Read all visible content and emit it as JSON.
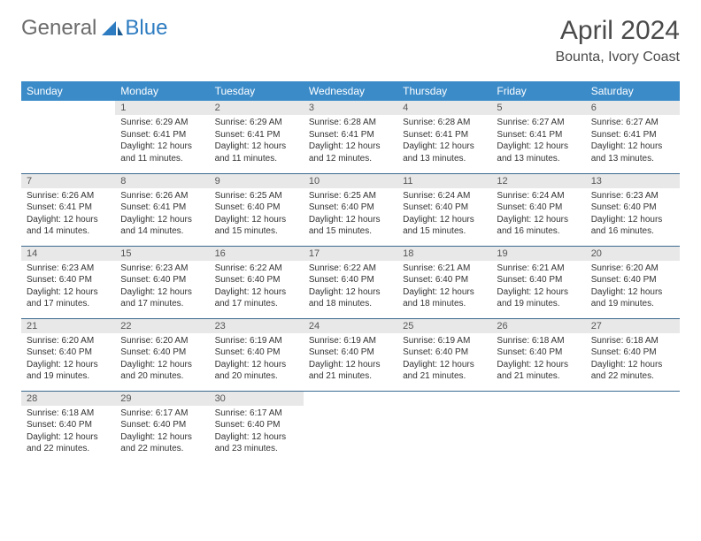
{
  "brand": {
    "part1": "General",
    "part2": "Blue"
  },
  "title": "April 2024",
  "location": "Bounta, Ivory Coast",
  "colors": {
    "header_bg": "#3b8bc9",
    "header_text": "#ffffff",
    "daybar_bg": "#e8e8e8",
    "row_border": "#3b6a8f",
    "brand_gray": "#6b6b6b",
    "brand_blue": "#2d7cc1"
  },
  "weekdays": [
    "Sunday",
    "Monday",
    "Tuesday",
    "Wednesday",
    "Thursday",
    "Friday",
    "Saturday"
  ],
  "weeks": [
    [
      null,
      {
        "n": "1",
        "sr": "6:29 AM",
        "ss": "6:41 PM",
        "dl": "12 hours and 11 minutes."
      },
      {
        "n": "2",
        "sr": "6:29 AM",
        "ss": "6:41 PM",
        "dl": "12 hours and 11 minutes."
      },
      {
        "n": "3",
        "sr": "6:28 AM",
        "ss": "6:41 PM",
        "dl": "12 hours and 12 minutes."
      },
      {
        "n": "4",
        "sr": "6:28 AM",
        "ss": "6:41 PM",
        "dl": "12 hours and 13 minutes."
      },
      {
        "n": "5",
        "sr": "6:27 AM",
        "ss": "6:41 PM",
        "dl": "12 hours and 13 minutes."
      },
      {
        "n": "6",
        "sr": "6:27 AM",
        "ss": "6:41 PM",
        "dl": "12 hours and 13 minutes."
      }
    ],
    [
      {
        "n": "7",
        "sr": "6:26 AM",
        "ss": "6:41 PM",
        "dl": "12 hours and 14 minutes."
      },
      {
        "n": "8",
        "sr": "6:26 AM",
        "ss": "6:41 PM",
        "dl": "12 hours and 14 minutes."
      },
      {
        "n": "9",
        "sr": "6:25 AM",
        "ss": "6:40 PM",
        "dl": "12 hours and 15 minutes."
      },
      {
        "n": "10",
        "sr": "6:25 AM",
        "ss": "6:40 PM",
        "dl": "12 hours and 15 minutes."
      },
      {
        "n": "11",
        "sr": "6:24 AM",
        "ss": "6:40 PM",
        "dl": "12 hours and 15 minutes."
      },
      {
        "n": "12",
        "sr": "6:24 AM",
        "ss": "6:40 PM",
        "dl": "12 hours and 16 minutes."
      },
      {
        "n": "13",
        "sr": "6:23 AM",
        "ss": "6:40 PM",
        "dl": "12 hours and 16 minutes."
      }
    ],
    [
      {
        "n": "14",
        "sr": "6:23 AM",
        "ss": "6:40 PM",
        "dl": "12 hours and 17 minutes."
      },
      {
        "n": "15",
        "sr": "6:23 AM",
        "ss": "6:40 PM",
        "dl": "12 hours and 17 minutes."
      },
      {
        "n": "16",
        "sr": "6:22 AM",
        "ss": "6:40 PM",
        "dl": "12 hours and 17 minutes."
      },
      {
        "n": "17",
        "sr": "6:22 AM",
        "ss": "6:40 PM",
        "dl": "12 hours and 18 minutes."
      },
      {
        "n": "18",
        "sr": "6:21 AM",
        "ss": "6:40 PM",
        "dl": "12 hours and 18 minutes."
      },
      {
        "n": "19",
        "sr": "6:21 AM",
        "ss": "6:40 PM",
        "dl": "12 hours and 19 minutes."
      },
      {
        "n": "20",
        "sr": "6:20 AM",
        "ss": "6:40 PM",
        "dl": "12 hours and 19 minutes."
      }
    ],
    [
      {
        "n": "21",
        "sr": "6:20 AM",
        "ss": "6:40 PM",
        "dl": "12 hours and 19 minutes."
      },
      {
        "n": "22",
        "sr": "6:20 AM",
        "ss": "6:40 PM",
        "dl": "12 hours and 20 minutes."
      },
      {
        "n": "23",
        "sr": "6:19 AM",
        "ss": "6:40 PM",
        "dl": "12 hours and 20 minutes."
      },
      {
        "n": "24",
        "sr": "6:19 AM",
        "ss": "6:40 PM",
        "dl": "12 hours and 21 minutes."
      },
      {
        "n": "25",
        "sr": "6:19 AM",
        "ss": "6:40 PM",
        "dl": "12 hours and 21 minutes."
      },
      {
        "n": "26",
        "sr": "6:18 AM",
        "ss": "6:40 PM",
        "dl": "12 hours and 21 minutes."
      },
      {
        "n": "27",
        "sr": "6:18 AM",
        "ss": "6:40 PM",
        "dl": "12 hours and 22 minutes."
      }
    ],
    [
      {
        "n": "28",
        "sr": "6:18 AM",
        "ss": "6:40 PM",
        "dl": "12 hours and 22 minutes."
      },
      {
        "n": "29",
        "sr": "6:17 AM",
        "ss": "6:40 PM",
        "dl": "12 hours and 22 minutes."
      },
      {
        "n": "30",
        "sr": "6:17 AM",
        "ss": "6:40 PM",
        "dl": "12 hours and 23 minutes."
      },
      null,
      null,
      null,
      null
    ]
  ],
  "labels": {
    "sunrise": "Sunrise:",
    "sunset": "Sunset:",
    "daylight": "Daylight:"
  }
}
